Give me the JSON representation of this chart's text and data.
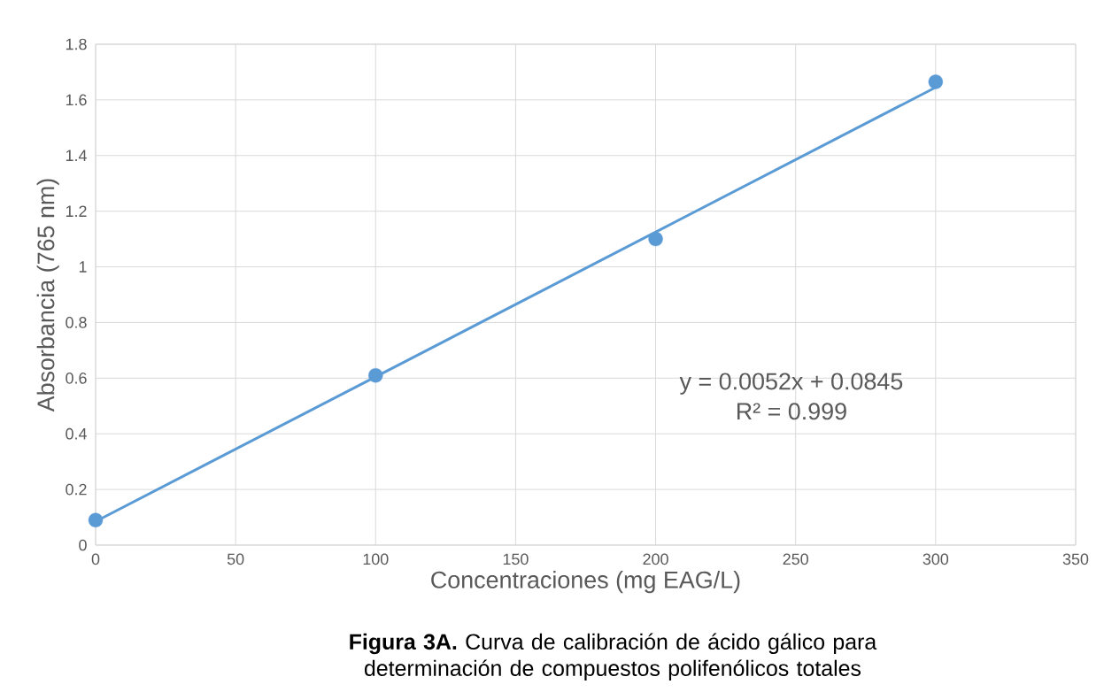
{
  "chart_data": {
    "type": "scatter",
    "title": "**Figura 3A.** Curva de calibración de ácido gálico para determinación de compuestos polifenólicos totales",
    "xlabel": "Concentraciones (mg EAG/L)",
    "ylabel": "Absorbancia (765 nm)",
    "x": [
      0,
      100,
      200,
      300
    ],
    "series": [
      {
        "color": "#5b9bd5",
        "marker": "circle",
        "values": [
          0.09,
          0.61,
          1.1,
          1.665
        ]
      },
      {
        "type": "line",
        "color": "#5b9bd5",
        "marker": "none",
        "line_style": "solid",
        "x": [
          0,
          300
        ],
        "values": [
          0.085,
          1.645
        ]
      }
    ],
    "annotations": [
      "y = 0.0052x + 0.0845",
      "R² = 0.999"
    ],
    "xlim": [
      0,
      350
    ],
    "ylim": [
      0,
      1.8
    ],
    "xticks": [
      0,
      50,
      100,
      150,
      200,
      250,
      300,
      350
    ],
    "yticks": [
      0,
      0.2,
      0.4,
      0.6,
      0.8,
      1,
      1.2,
      1.4,
      1.6,
      1.8
    ],
    "grid": true
  }
}
